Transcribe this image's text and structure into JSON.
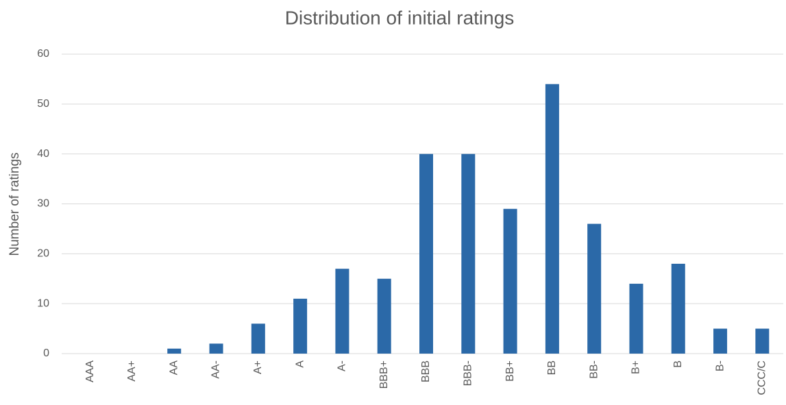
{
  "chart_data": {
    "type": "bar",
    "title": "Distribution of initial ratings",
    "y_label": "Number of ratings",
    "categories": [
      "AAA",
      "AA+",
      "AA",
      "AA-",
      "A+",
      "A",
      "A-",
      "BBB+",
      "BBB",
      "BBB-",
      "BB+",
      "BB",
      "BB-",
      "B+",
      "B",
      "B-",
      "CCC/C"
    ],
    "values": [
      0,
      0,
      1,
      2,
      6,
      11,
      17,
      15,
      40,
      40,
      29,
      54,
      26,
      14,
      18,
      5,
      5
    ],
    "color": "#2b69a8",
    "ylim": [
      0,
      60
    ],
    "yticks": [
      0,
      10,
      20,
      30,
      40,
      50,
      60
    ],
    "grid": true
  }
}
